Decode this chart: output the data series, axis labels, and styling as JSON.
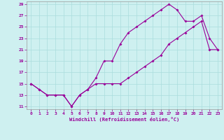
{
  "xlabel": "Windchill (Refroidissement éolien,°C)",
  "bg_color": "#cef0f0",
  "grid_color": "#aadddd",
  "line_color": "#990099",
  "x_ticks": [
    0,
    1,
    2,
    3,
    4,
    5,
    6,
    7,
    8,
    9,
    10,
    11,
    12,
    13,
    14,
    15,
    16,
    17,
    18,
    19,
    20,
    21,
    22,
    23
  ],
  "y_ticks": [
    11,
    13,
    15,
    17,
    19,
    21,
    23,
    25,
    27,
    29
  ],
  "xlim": [
    -0.5,
    23.5
  ],
  "ylim": [
    10.5,
    29.5
  ],
  "line1_x": [
    0,
    1,
    2,
    3,
    4,
    5,
    6,
    7,
    8,
    9,
    10,
    11,
    12,
    13,
    14,
    15,
    16,
    17,
    18,
    19,
    20,
    21,
    22,
    23
  ],
  "line1_y": [
    15,
    14,
    13,
    13,
    13,
    11,
    13,
    14,
    16,
    19,
    19,
    22,
    24,
    25,
    26,
    27,
    28,
    29,
    28,
    26,
    26,
    27,
    23,
    21
  ],
  "line2_x": [
    0,
    1,
    2,
    3,
    4,
    5,
    6,
    7,
    8,
    9,
    10,
    11,
    12,
    13,
    14,
    15,
    16,
    17,
    18,
    19,
    20,
    21,
    22,
    23
  ],
  "line2_y": [
    15,
    14,
    13,
    13,
    13,
    11,
    13,
    14,
    15,
    15,
    15,
    15,
    16,
    17,
    18,
    19,
    20,
    22,
    23,
    24,
    25,
    26,
    21,
    21
  ]
}
